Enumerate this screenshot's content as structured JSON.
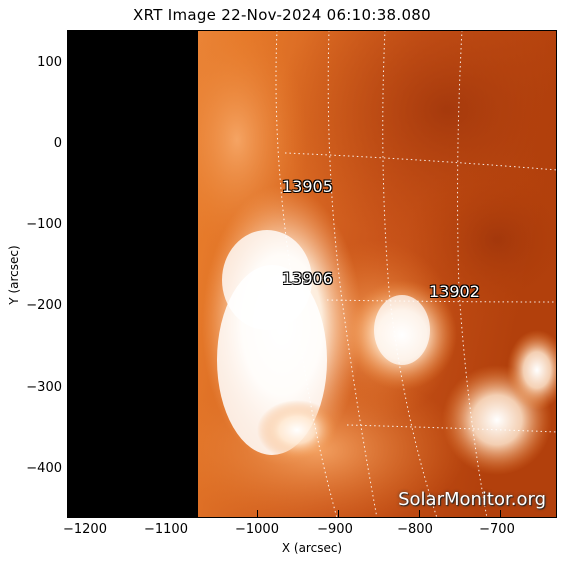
{
  "title": "XRT Image 22-Nov-2024 06:10:38.080",
  "axes": {
    "xlabel": "X (arcsec)",
    "ylabel": "Y (arcsec)",
    "x_ticks": [
      "−1200",
      "−1100",
      "−1000",
      "−900",
      "−800",
      "−700"
    ],
    "y_ticks": [
      "100",
      "0",
      "−100",
      "−200",
      "−300",
      "−400"
    ]
  },
  "active_regions": {
    "ar1": "13905",
    "ar2": "13906",
    "ar3": "13902"
  },
  "watermark": "SolarMonitor.org",
  "colors": {
    "sun_dark": "#b8430a",
    "sun_mid": "#e8751e",
    "sun_bright": "#ffffff",
    "off_limb": "#000000"
  }
}
